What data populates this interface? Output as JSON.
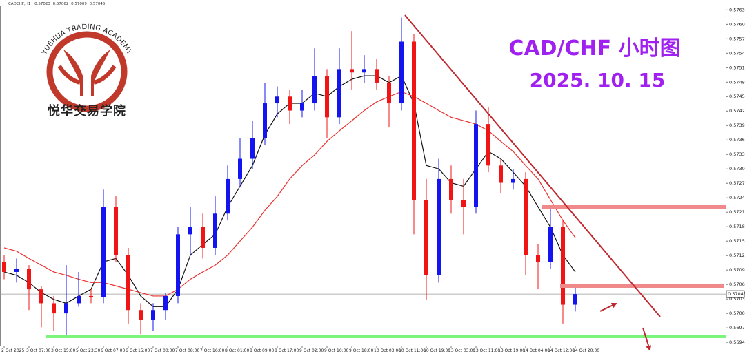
{
  "header": {
    "symbol": "CADCHF,H1"
  },
  "logo": {
    "arc_text": "YUEHUA TRADING ACADEMY",
    "name": "悦华交易学院"
  },
  "chart_data": {
    "type": "candlestick",
    "title": "CAD/CHF 小时图",
    "subtitle": "2025. 10. 15",
    "categories": [
      "2 Oct 2025",
      null,
      "3 Oct 07:00",
      null,
      "3 Oct 15:00",
      null,
      "5 Oct 23:30",
      null,
      "6 Oct 07:00",
      null,
      "6 Oct 15:00",
      null,
      "7 Oct 00:00",
      null,
      "7 Oct 08:00",
      null,
      "7 Oct 16:00",
      null,
      "8 Oct 01:00",
      null,
      "8 Oct 09:00",
      null,
      "8 Oct 17:00",
      null,
      "9 Oct 02:00",
      null,
      "9 Oct 10:00",
      null,
      "9 Oct 18:00",
      null,
      "10 Oct 03:00",
      null,
      "10 Oct 11:00",
      null,
      "10 Oct 19:00",
      null,
      "13 Oct 03:00",
      null,
      "13 Oct 11:00",
      null,
      "13 Oct 19:00",
      null,
      "14 Oct 04:00",
      null,
      "14 Oct 12:00",
      null,
      "14 Oct 20:00"
    ],
    "open": [
      0.57112,
      0.57091,
      0.57098,
      0.57055,
      0.57026,
      0.57005,
      0.57026,
      0.57041,
      0.57038,
      0.57226,
      0.57126,
      0.57012,
      0.56991,
      0.57012,
      0.57041,
      0.57169,
      0.57184,
      0.57141,
      0.57212,
      0.57284,
      0.57326,
      0.57369,
      0.57441,
      0.57455,
      0.57426,
      0.57441,
      0.57498,
      0.57412,
      0.57512,
      0.57505,
      0.57512,
      0.57484,
      0.57441,
      0.57569,
      0.57241,
      0.57084,
      0.57284,
      0.57241,
      0.57226,
      0.57398,
      0.57312,
      0.57276,
      0.57284,
      0.57126,
      0.57112,
      0.57184,
      0.57023
    ],
    "high": [
      0.57126,
      0.57119,
      0.57105,
      0.57062,
      0.57041,
      0.57105,
      0.57091,
      0.57055,
      0.57262,
      0.57248,
      0.57141,
      0.57026,
      0.57026,
      0.57048,
      0.57184,
      0.57226,
      0.57212,
      0.57248,
      0.57312,
      0.57369,
      0.57405,
      0.57484,
      0.57476,
      0.57469,
      0.57469,
      0.57555,
      0.57512,
      0.57555,
      0.57591,
      0.57541,
      0.57534,
      0.57498,
      0.57619,
      0.57584,
      0.57284,
      0.57326,
      0.57312,
      0.57284,
      0.57426,
      0.57434,
      0.57326,
      0.57305,
      0.57298,
      0.57148,
      0.57226,
      0.57198,
      0.57062
    ],
    "low": [
      0.57076,
      0.57069,
      0.57012,
      0.56976,
      0.56969,
      0.56958,
      0.57019,
      0.57026,
      0.57026,
      0.57112,
      0.56984,
      0.56962,
      0.56969,
      0.56991,
      0.57026,
      0.57126,
      0.57119,
      0.57126,
      0.57198,
      0.57269,
      0.57305,
      0.57355,
      0.57412,
      0.57398,
      0.57412,
      0.57426,
      0.57369,
      0.57398,
      0.57469,
      0.57484,
      0.57469,
      0.57391,
      0.57426,
      0.57169,
      0.57034,
      0.57069,
      0.57212,
      0.57169,
      0.57212,
      0.57298,
      0.57255,
      0.57262,
      0.57084,
      0.57055,
      0.57098,
      0.56984,
      0.57009
    ],
    "close": [
      0.57091,
      0.57098,
      0.57055,
      0.57026,
      0.57005,
      0.57026,
      0.57041,
      0.57038,
      0.57226,
      0.57126,
      0.57012,
      0.56991,
      0.57012,
      0.57041,
      0.57169,
      0.57184,
      0.57141,
      0.57212,
      0.57284,
      0.57326,
      0.57369,
      0.57441,
      0.57455,
      0.57426,
      0.57441,
      0.57498,
      0.57412,
      0.57512,
      0.57505,
      0.57512,
      0.57484,
      0.57441,
      0.57569,
      0.57241,
      0.57084,
      0.57284,
      0.57241,
      0.57226,
      0.57398,
      0.57312,
      0.57276,
      0.57284,
      0.57126,
      0.57112,
      0.57184,
      0.57023,
      0.57045
    ],
    "up_color": "#1414f0",
    "down_color": "#f01414",
    "series": [
      {
        "color": "#111111",
        "values": [
          0.57091,
          0.57084,
          0.57069,
          0.57048,
          0.57034,
          0.57026,
          0.57041,
          0.57055,
          0.57112,
          0.57119,
          0.57084,
          0.57041,
          0.57019,
          0.57019,
          0.57055,
          0.57126,
          0.57148,
          0.57169,
          0.57226,
          0.57269,
          0.57312,
          0.57376,
          0.57419,
          0.57441,
          0.57441,
          0.57462,
          0.57455,
          0.57476,
          0.57491,
          0.57498,
          0.57498,
          0.57484,
          0.57498,
          0.57441,
          0.57312,
          0.57305,
          0.57276,
          0.57269,
          0.57305,
          0.57341,
          0.57326,
          0.57298,
          0.57269,
          0.57226,
          0.57184,
          0.57126,
          0.57091
        ]
      },
      {
        "color": "#e8302e",
        "values": [
          0.57141,
          0.57134,
          0.57119,
          0.57105,
          0.57091,
          0.57084,
          0.57076,
          0.57069,
          0.57069,
          0.57062,
          0.57055,
          0.57048,
          0.57041,
          0.57041,
          0.57055,
          0.57076,
          0.57091,
          0.57105,
          0.57126,
          0.57155,
          0.57184,
          0.57219,
          0.57248,
          0.57284,
          0.57312,
          0.57334,
          0.57362,
          0.57384,
          0.57405,
          0.57426,
          0.57444,
          0.57455,
          0.57465,
          0.57455,
          0.57441,
          0.57426,
          0.57412,
          0.57405,
          0.57398,
          0.57384,
          0.57362,
          0.57341,
          0.57312,
          0.57284,
          0.57241,
          0.57198,
          0.57162
        ]
      }
    ],
    "current_price": 0.57045,
    "ylim": [
      0.56938,
      0.57644
    ],
    "yticks": [
      0.57635,
      0.57605,
      0.57575,
      0.57545,
      0.57515,
      0.57485,
      0.57455,
      0.57425,
      0.57395,
      0.57365,
      0.57335,
      0.57305,
      0.57275,
      0.57245,
      0.57215,
      0.57185,
      0.57155,
      0.57125,
      0.57095,
      0.57065,
      0.57035,
      0.57005,
      0.56975,
      0.56945
    ],
    "grid": false
  }
}
